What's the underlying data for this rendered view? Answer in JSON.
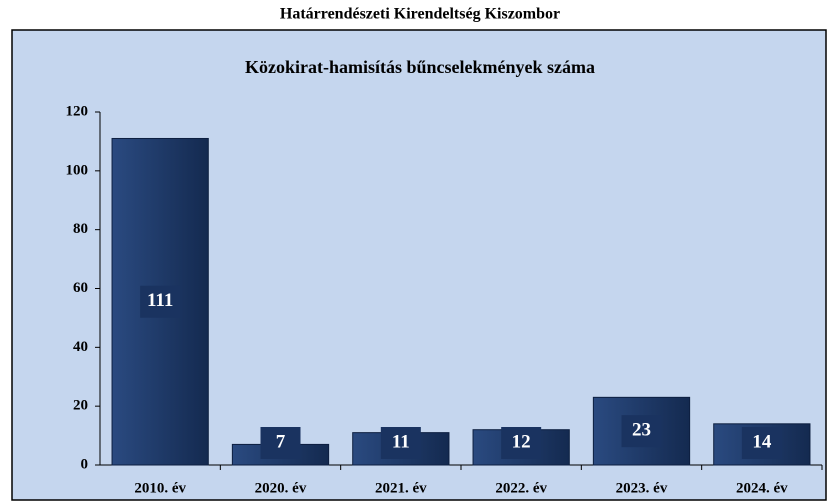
{
  "chart_data": {
    "type": "bar",
    "header": "Határrendészeti Kirendeltség Kiszombor",
    "title": "Közokirat-hamisítás bűncselekmények száma",
    "categories": [
      "2010. év",
      "2020. év",
      "2021. év",
      "2022. év",
      "2023. év",
      "2024. év"
    ],
    "values": [
      111,
      7,
      11,
      12,
      23,
      14
    ],
    "color": "#1f3a68",
    "ylim": [
      0,
      120
    ],
    "yticks": [
      0,
      20,
      40,
      60,
      80,
      100,
      120
    ],
    "grid": false
  }
}
